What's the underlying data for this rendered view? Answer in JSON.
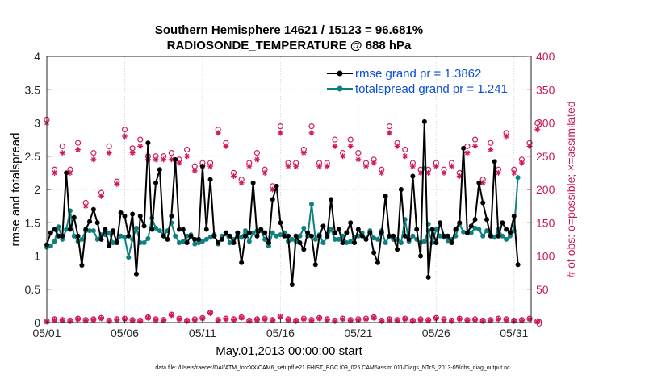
{
  "title_line1": "Southern Hemisphere 14621 / 15123 = 96.681%",
  "title_line2": "RADIOSONDE_TEMPERATURE @ 688 hPa",
  "xlabel": "May.01,2013 00:00:00 start",
  "ylabel_left": "rmse and totalspread",
  "ylabel_right": "# of obs: o=possible; ×=assimilated",
  "footer": "data file: /Users/raeder/DAI/ATM_forcXX/CAM6_setup/f.e21.FHIST_BGC.f09_025.CAM6assim.011/Diags_NTrS_2013-05/obs_diag_output.nc",
  "colors": {
    "rmse": "#000000",
    "spread": "#0f8080",
    "obs": "#d11a5e",
    "legend_text": "#0b4fd6"
  },
  "chart_data": {
    "type": "line",
    "x_unit": "day of May 2013 (1.0 = 05/01 00Z), 6-hourly",
    "xlim": [
      1,
      32.1
    ],
    "x_ticks": [
      1,
      6,
      11,
      16,
      21,
      26,
      31
    ],
    "x_tick_labels": [
      "05/01",
      "05/06",
      "05/11",
      "05/16",
      "05/21",
      "05/26",
      "05/31"
    ],
    "ylim_left": [
      0,
      4
    ],
    "y_ticks_left": [
      "0",
      "0.5",
      "1",
      "1.5",
      "2",
      "2.5",
      "3",
      "3.5",
      "4"
    ],
    "ylim_right": [
      0,
      400
    ],
    "y_ticks_right": [
      "0",
      "50",
      "100",
      "150",
      "200",
      "250",
      "300",
      "350",
      "400"
    ],
    "legend": [
      "rmse grand pr = 1.3862",
      "totalspread grand pr = 1.241"
    ],
    "series": [
      {
        "name": "rmse",
        "axis": "left",
        "start": 1.0,
        "step": 0.25,
        "values": [
          1.17,
          1.35,
          1.4,
          1.3,
          1.3,
          2.25,
          1.4,
          1.58,
          1.3,
          0.86,
          1.4,
          1.52,
          1.7,
          1.5,
          1.25,
          1.4,
          1.15,
          1.38,
          1.2,
          1.65,
          1.6,
          1.3,
          1.63,
          0.73,
          1.6,
          1.45,
          2.7,
          1.4,
          2.1,
          2.3,
          1.3,
          1.25,
          1.6,
          2.45,
          1.4,
          1.4,
          1.2,
          1.3,
          1.25,
          1.25,
          2.35,
          1.4,
          2.15,
          1.3,
          1.2,
          1.25,
          1.35,
          1.3,
          1.2,
          1.35,
          0.9,
          1.3,
          1.35,
          2.1,
          1.3,
          1.4,
          1.35,
          1.2,
          1.85,
          2.05,
          1.5,
          1.3,
          1.3,
          0.57,
          1.3,
          1.2,
          1.1,
          1.35,
          1.3,
          0.87,
          1.3,
          1.45,
          1.3,
          1.85,
          1.35,
          1.4,
          1.2,
          1.35,
          1.5,
          1.2,
          1.4,
          1.3,
          1.25,
          1.35,
          1.05,
          0.9,
          1.35,
          1.9,
          1.3,
          1.3,
          1.1,
          2.0,
          1.3,
          1.25,
          2.2,
          1.4,
          1.0,
          3.02,
          0.68,
          1.4,
          1.2,
          1.5,
          1.3,
          1.3,
          1.2,
          1.4,
          1.5,
          2.62,
          1.35,
          1.45,
          1.55,
          2.1,
          1.8,
          1.55,
          1.3,
          2.42,
          1.3,
          1.5,
          1.4,
          1.35,
          1.6,
          0.87
        ],
        "outlier_note": ""
      },
      {
        "name": "totalspread",
        "axis": "left",
        "start": 1.0,
        "step": 0.25,
        "values": [
          1.13,
          1.15,
          1.22,
          1.44,
          1.25,
          1.4,
          1.68,
          1.3,
          1.22,
          1.25,
          1.38,
          1.38,
          1.38,
          1.25,
          1.32,
          1.32,
          1.35,
          1.2,
          1.22,
          1.3,
          1.28,
          0.98,
          1.25,
          1.42,
          1.2,
          1.2,
          1.26,
          1.57,
          1.42,
          1.38,
          1.3,
          1.38,
          1.5,
          1.3,
          1.2,
          1.22,
          1.3,
          1.32,
          1.18,
          1.2,
          1.22,
          1.25,
          1.28,
          1.32,
          1.18,
          1.3,
          1.33,
          1.2,
          1.25,
          1.3,
          1.28,
          1.38,
          1.22,
          1.35,
          1.38,
          1.38,
          1.25,
          1.15,
          1.35,
          1.3,
          1.32,
          1.35,
          1.22,
          1.25,
          1.22,
          1.3,
          1.42,
          1.3,
          1.78,
          1.25,
          1.32,
          1.2,
          1.28,
          1.4,
          1.25,
          1.25,
          1.3,
          1.2,
          1.22,
          1.28,
          1.3,
          1.35,
          1.25,
          1.38,
          1.27,
          1.25,
          1.38,
          1.2,
          1.3,
          1.25,
          1.25,
          1.2,
          1.55,
          1.22,
          1.3,
          1.25,
          1.2,
          1.22,
          1.38,
          1.2,
          1.4,
          1.3,
          1.28,
          1.23,
          1.25,
          1.3,
          1.48,
          1.36,
          1.35,
          1.35,
          1.42,
          1.4,
          1.3,
          1.38,
          1.32,
          1.28,
          1.4,
          1.3,
          1.25,
          1.3,
          1.38,
          2.18
        ],
        "extra_points": [
          [
            25.25,
            2.32
          ],
          [
            25.5,
            1.48
          ]
        ]
      },
      {
        "name": "obs possible",
        "axis": "right",
        "marker": "o",
        "start": 1.0,
        "step": 0.5,
        "values": [
          305,
          230,
          265,
          230,
          270,
          180,
          255,
          195,
          265,
          212,
          290,
          262,
          275,
          250,
          250,
          250,
          255,
          245,
          260,
          235,
          240,
          240,
          290,
          270,
          225,
          215,
          240,
          255,
          230,
          205,
          295,
          240,
          240,
          260,
          295,
          240,
          240,
          275,
          255,
          275,
          255,
          240,
          245,
          230,
          295,
          270,
          260,
          240,
          230,
          230,
          240,
          230,
          240,
          225,
          265,
          275,
          215,
          270,
          230,
          285,
          230,
          245,
          270,
          300
        ],
        "zero_band": [
          2,
          5,
          4,
          3,
          6,
          4,
          5,
          7,
          3,
          5,
          6,
          4,
          3,
          8,
          5,
          4,
          12,
          6,
          3,
          5,
          7,
          15,
          4,
          6,
          5,
          8,
          3,
          5,
          6,
          4,
          9,
          5,
          3,
          6,
          4,
          7,
          5,
          3,
          6,
          4,
          5,
          6,
          8,
          3,
          5,
          4,
          6,
          3,
          5,
          4,
          7,
          5,
          3,
          6,
          4,
          5,
          3,
          4,
          6,
          5,
          3,
          4,
          6,
          2
        ]
      },
      {
        "name": "obs assimilated",
        "axis": "right",
        "marker": "x",
        "start": 1.0,
        "step": 0.5,
        "values": [
          300,
          225,
          255,
          225,
          260,
          175,
          245,
          190,
          255,
          208,
          280,
          255,
          265,
          245,
          245,
          245,
          245,
          240,
          250,
          228,
          235,
          235,
          285,
          265,
          220,
          210,
          235,
          245,
          225,
          200,
          285,
          235,
          235,
          255,
          285,
          235,
          235,
          265,
          250,
          265,
          245,
          235,
          240,
          225,
          285,
          265,
          250,
          235,
          225,
          225,
          235,
          225,
          235,
          220,
          255,
          265,
          210,
          260,
          225,
          280,
          225,
          240,
          265,
          290
        ],
        "zero_band": [
          1,
          4,
          3,
          2,
          5,
          3,
          4,
          6,
          2,
          4,
          5,
          3,
          2,
          7,
          4,
          3,
          11,
          5,
          2,
          4,
          6,
          14,
          3,
          5,
          4,
          7,
          2,
          4,
          5,
          3,
          8,
          4,
          2,
          5,
          3,
          6,
          4,
          2,
          5,
          3,
          4,
          5,
          7,
          2,
          4,
          3,
          5,
          2,
          4,
          3,
          6,
          4,
          2,
          5,
          3,
          4,
          2,
          3,
          5,
          4,
          2,
          3,
          5,
          1
        ]
      }
    ]
  }
}
